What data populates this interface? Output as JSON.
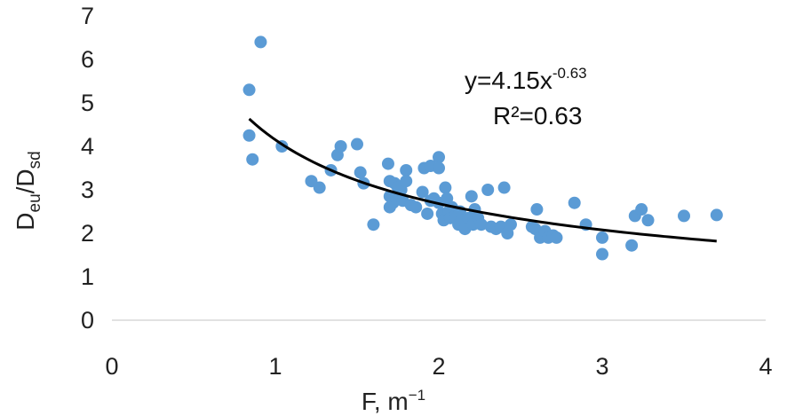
{
  "chart_data": {
    "type": "scatter",
    "xlabel_main": "F, m",
    "xlabel_sup": "−1",
    "ylabel_parts": [
      "D",
      "eu",
      "/D",
      "sd"
    ],
    "xlim": [
      0,
      4
    ],
    "ylim": [
      0,
      7
    ],
    "x_ticks": [
      "0",
      "1",
      "2",
      "3",
      "4"
    ],
    "y_ticks": [
      "0",
      "1",
      "2",
      "3",
      "4",
      "5",
      "6",
      "7"
    ],
    "marker_color": "#5B9BD5",
    "trend_color": "#000000",
    "trendline": {
      "form": "power",
      "a": 4.15,
      "b": -0.63,
      "x_range": [
        0.84,
        3.7
      ],
      "equation_main": "y=4.15x",
      "equation_exp": "-0.63",
      "r2_text": "R²=0.63"
    },
    "points": [
      [
        0.84,
        4.25
      ],
      [
        0.84,
        5.3
      ],
      [
        0.86,
        3.7
      ],
      [
        0.91,
        6.4
      ],
      [
        1.04,
        4.0
      ],
      [
        1.22,
        3.2
      ],
      [
        1.27,
        3.05
      ],
      [
        1.34,
        3.45
      ],
      [
        1.38,
        3.8
      ],
      [
        1.4,
        4.0
      ],
      [
        1.5,
        4.05
      ],
      [
        1.52,
        3.4
      ],
      [
        1.54,
        3.15
      ],
      [
        1.6,
        2.2
      ],
      [
        1.69,
        3.6
      ],
      [
        1.7,
        3.2
      ],
      [
        1.7,
        2.85
      ],
      [
        1.7,
        2.6
      ],
      [
        1.72,
        2.7
      ],
      [
        1.73,
        3.15
      ],
      [
        1.74,
        2.8
      ],
      [
        1.75,
        3.05
      ],
      [
        1.77,
        3.0
      ],
      [
        1.78,
        2.75
      ],
      [
        1.8,
        3.45
      ],
      [
        1.8,
        3.2
      ],
      [
        1.83,
        2.65
      ],
      [
        1.86,
        2.6
      ],
      [
        1.9,
        2.95
      ],
      [
        1.91,
        3.5
      ],
      [
        1.93,
        2.45
      ],
      [
        1.95,
        3.55
      ],
      [
        1.95,
        2.75
      ],
      [
        1.97,
        2.8
      ],
      [
        2.0,
        3.75
      ],
      [
        2.0,
        3.5
      ],
      [
        2.0,
        2.7
      ],
      [
        2.02,
        2.45
      ],
      [
        2.03,
        2.3
      ],
      [
        2.04,
        3.05
      ],
      [
        2.05,
        2.8
      ],
      [
        2.06,
        2.5
      ],
      [
        2.07,
        2.35
      ],
      [
        2.08,
        2.6
      ],
      [
        2.1,
        2.4
      ],
      [
        2.12,
        2.2
      ],
      [
        2.13,
        2.5
      ],
      [
        2.14,
        2.3
      ],
      [
        2.16,
        2.1
      ],
      [
        2.18,
        2.35
      ],
      [
        2.2,
        2.85
      ],
      [
        2.21,
        2.2
      ],
      [
        2.22,
        2.55
      ],
      [
        2.24,
        2.35
      ],
      [
        2.26,
        2.2
      ],
      [
        2.3,
        3.0
      ],
      [
        2.32,
        2.15
      ],
      [
        2.35,
        2.1
      ],
      [
        2.38,
        2.15
      ],
      [
        2.4,
        3.05
      ],
      [
        2.42,
        2.0
      ],
      [
        2.44,
        2.2
      ],
      [
        2.57,
        2.15
      ],
      [
        2.59,
        2.1
      ],
      [
        2.6,
        2.55
      ],
      [
        2.62,
        2.0
      ],
      [
        2.62,
        1.9
      ],
      [
        2.65,
        2.05
      ],
      [
        2.67,
        1.9
      ],
      [
        2.7,
        1.95
      ],
      [
        2.72,
        1.9
      ],
      [
        2.83,
        2.7
      ],
      [
        2.9,
        2.2
      ],
      [
        3.0,
        1.9
      ],
      [
        3.0,
        1.52
      ],
      [
        3.18,
        1.72
      ],
      [
        3.2,
        2.4
      ],
      [
        3.24,
        2.55
      ],
      [
        3.28,
        2.3
      ],
      [
        3.5,
        2.4
      ],
      [
        3.7,
        2.42
      ]
    ]
  }
}
